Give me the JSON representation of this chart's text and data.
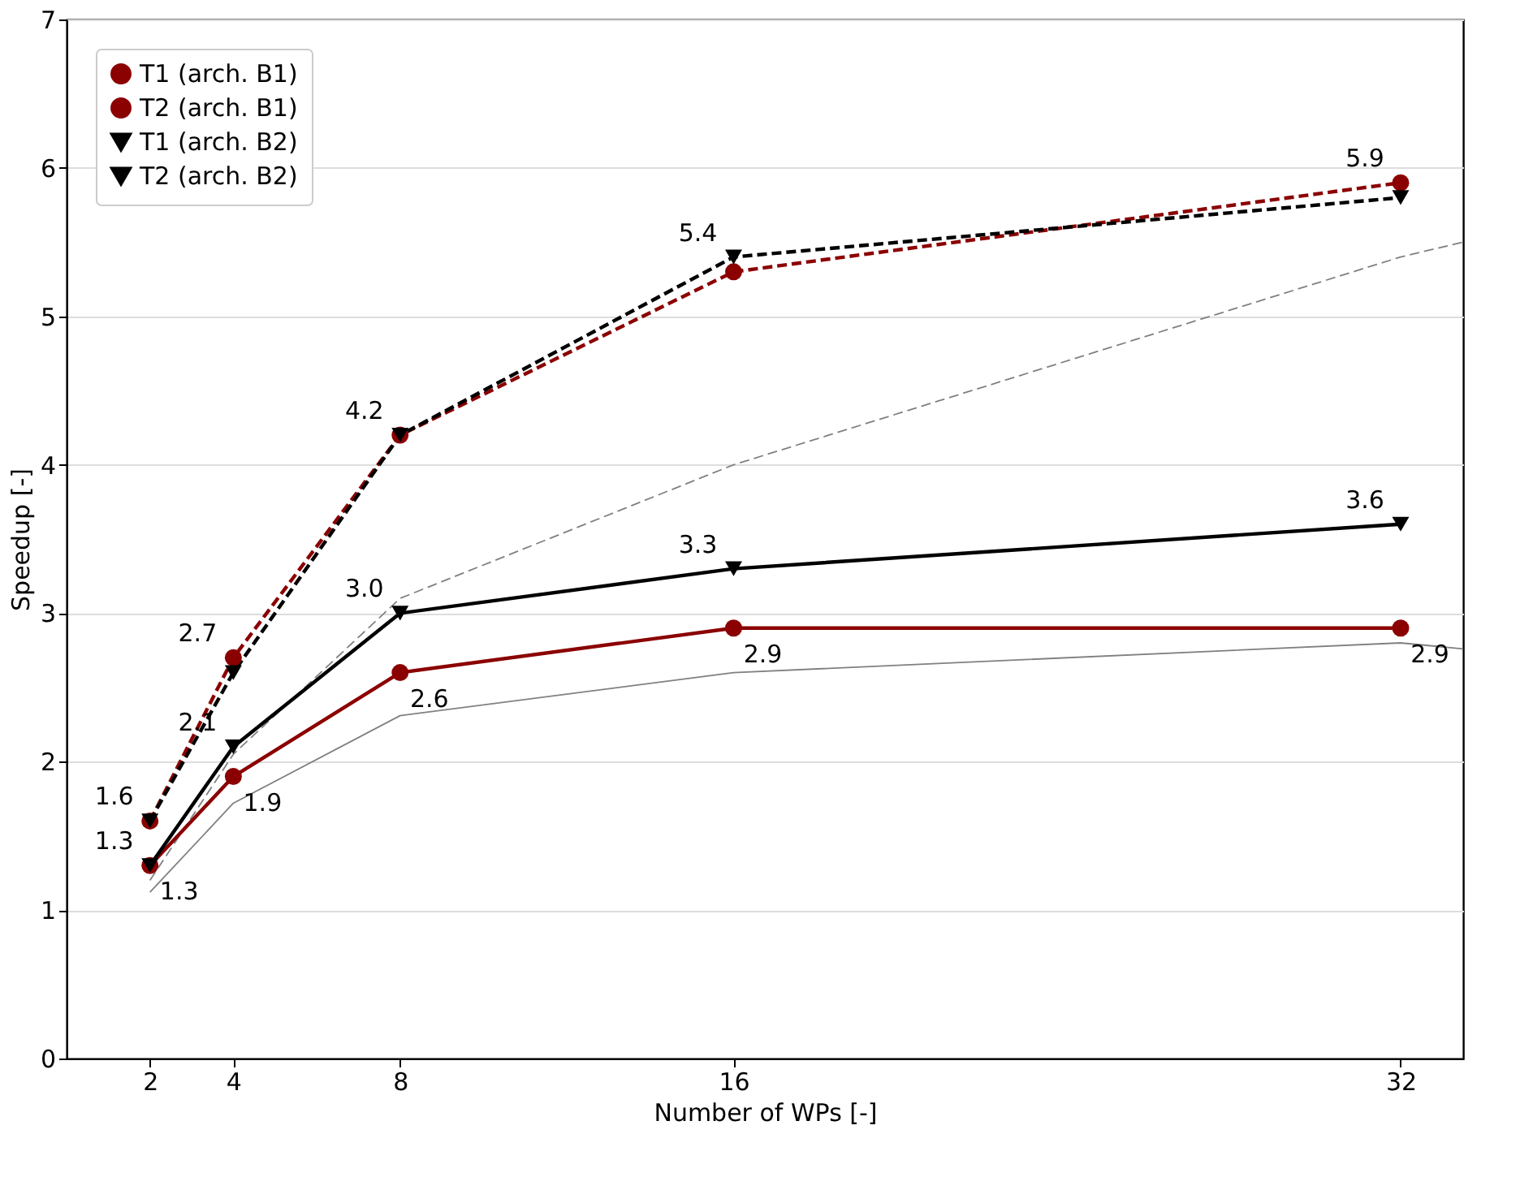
{
  "chart_data": {
    "type": "line",
    "xlabel": "Number of WPs [-]",
    "ylabel": "Speedup [-]",
    "x": [
      2,
      4,
      8,
      16,
      32
    ],
    "xlim": [
      0,
      33.5
    ],
    "xticks": [
      2,
      4,
      8,
      16,
      32
    ],
    "ylim": [
      0,
      7
    ],
    "yticks": [
      0,
      1,
      2,
      3,
      4,
      5,
      6,
      7
    ],
    "grid": "y",
    "legend": "top left",
    "series": [
      {
        "name": "T1 (arch. B1)",
        "color": "#8b0000",
        "line_style": "solid",
        "marker": "circle",
        "values": [
          1.3,
          1.9,
          2.6,
          2.9,
          2.9
        ],
        "value_labels": [
          "1.3",
          "1.9",
          "2.6",
          "2.9",
          "2.9"
        ]
      },
      {
        "name": "T2 (arch. B1)",
        "color": "#8b0000",
        "line_style": "dashed",
        "marker": "circle",
        "values": [
          1.6,
          2.7,
          4.2,
          5.3,
          5.9
        ],
        "value_labels": [
          null,
          "2.7",
          null,
          null,
          "5.9"
        ]
      },
      {
        "name": "T1 (arch. B2)",
        "color": "#000000",
        "line_style": "solid",
        "marker": "triangle",
        "values": [
          1.3,
          2.1,
          3.0,
          3.3,
          3.6
        ],
        "value_labels": [
          "1.3",
          "2.1",
          "3.0",
          "3.3",
          "3.6"
        ]
      },
      {
        "name": "T2 (arch. B2)",
        "color": "#000000",
        "line_style": "dashed",
        "marker": "triangle",
        "values": [
          1.6,
          2.6,
          4.2,
          5.4,
          5.8
        ],
        "value_labels": [
          "1.6",
          null,
          "4.2",
          "5.4",
          null
        ]
      },
      {
        "color": "#808080",
        "line_style": "solid",
        "marker": "none",
        "x": [
          2,
          4,
          8,
          16,
          32,
          33.5
        ],
        "values": [
          1.12,
          1.72,
          2.31,
          2.6,
          2.8,
          2.76
        ]
      },
      {
        "color": "#808080",
        "line_style": "dashed",
        "marker": "none",
        "x": [
          2,
          4,
          8,
          16,
          32,
          33.5
        ],
        "values": [
          1.2,
          2.05,
          3.1,
          4.0,
          5.4,
          5.5
        ]
      }
    ]
  }
}
